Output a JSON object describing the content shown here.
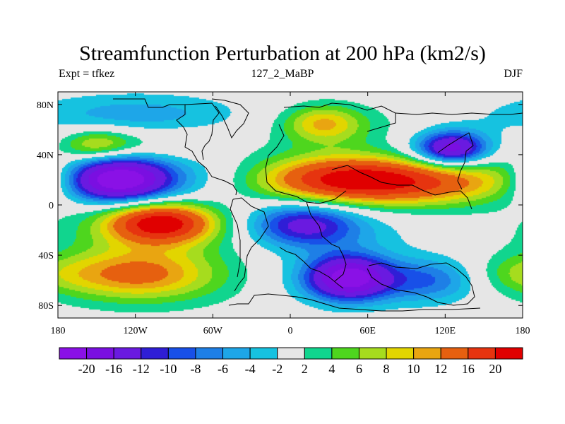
{
  "title": "Streamfunction Perturbation at 200 hPa (km2/s)",
  "left_label": "Expt = tfkez",
  "center_label": "127_2_MaBP",
  "right_label": "DJF",
  "chart_data": {
    "type": "heatmap",
    "x_ticks": [
      "180",
      "120W",
      "60W",
      "0",
      "60E",
      "120E",
      "180"
    ],
    "y_ticks": [
      "80N",
      "40N",
      "0",
      "40S",
      "80S"
    ],
    "xlim": [
      -180,
      180
    ],
    "ylim": [
      -90,
      90
    ],
    "levels": [
      -20,
      -16,
      -12,
      -10,
      -8,
      -6,
      -4,
      -2,
      2,
      4,
      6,
      8,
      10,
      12,
      16,
      20
    ],
    "colorbar_labels": [
      "-20",
      "-16",
      "-12",
      "-10",
      "-8",
      "-6",
      "-4",
      "-2",
      "2",
      "4",
      "6",
      "8",
      "10",
      "12",
      "16",
      "20"
    ],
    "colors": [
      "#8a11e6",
      "#7a0fe1",
      "#6a1ae0",
      "#2f1ed6",
      "#1850e8",
      "#1e7fe6",
      "#1ea6e8",
      "#16c2e0",
      "#e6e6e6",
      "#11d58e",
      "#4ed61e",
      "#a6dc1e",
      "#e2d500",
      "#e9a511",
      "#e6600f",
      "#e6340f",
      "#e00000"
    ],
    "features": [
      {
        "lon": -135,
        "lat": 20,
        "value": -22,
        "sx": 28,
        "sy": 12
      },
      {
        "lon": -105,
        "lat": 17,
        "value": -6,
        "sx": 55,
        "sy": 22
      },
      {
        "lon": -150,
        "lat": 48,
        "value": 8,
        "sx": 20,
        "sy": 9
      },
      {
        "lon": -105,
        "lat": 48,
        "value": 4,
        "sx": 40,
        "sy": 10
      },
      {
        "lon": -120,
        "lat": 72,
        "value": -5,
        "sx": 60,
        "sy": 12
      },
      {
        "lon": -100,
        "lat": -14,
        "value": 20,
        "sx": 28,
        "sy": 11
      },
      {
        "lon": -110,
        "lat": -17,
        "value": 6,
        "sx": 50,
        "sy": 20
      },
      {
        "lon": -120,
        "lat": -55,
        "value": 9,
        "sx": 40,
        "sy": 13
      },
      {
        "lon": -110,
        "lat": -60,
        "value": 4,
        "sx": 60,
        "sy": 18
      },
      {
        "lon": 25,
        "lat": 65,
        "value": 8,
        "sx": 20,
        "sy": 10
      },
      {
        "lon": 40,
        "lat": 62,
        "value": 3,
        "sx": 45,
        "sy": 14
      },
      {
        "lon": 45,
        "lat": 20,
        "value": 16,
        "sx": 45,
        "sy": 12
      },
      {
        "lon": 60,
        "lat": 20,
        "value": 6,
        "sx": 80,
        "sy": 18
      },
      {
        "lon": 115,
        "lat": 18,
        "value": 8,
        "sx": 45,
        "sy": 12
      },
      {
        "lon": 125,
        "lat": 45,
        "value": -16,
        "sx": 18,
        "sy": 9
      },
      {
        "lon": 120,
        "lat": 42,
        "value": -4,
        "sx": 35,
        "sy": 14
      },
      {
        "lon": 10,
        "lat": -15,
        "value": -11,
        "sx": 28,
        "sy": 12
      },
      {
        "lon": 30,
        "lat": -20,
        "value": -4,
        "sx": 45,
        "sy": 16
      },
      {
        "lon": 45,
        "lat": -58,
        "value": -20,
        "sx": 22,
        "sy": 12
      },
      {
        "lon": 60,
        "lat": -60,
        "value": -4,
        "sx": 50,
        "sy": 14
      },
      {
        "lon": 110,
        "lat": -60,
        "value": -6,
        "sx": 25,
        "sy": 12
      },
      {
        "lon": 175,
        "lat": -55,
        "value": 3,
        "sx": 25,
        "sy": 10
      },
      {
        "lon": 170,
        "lat": 25,
        "value": 3,
        "sx": 25,
        "sy": 12
      }
    ]
  }
}
